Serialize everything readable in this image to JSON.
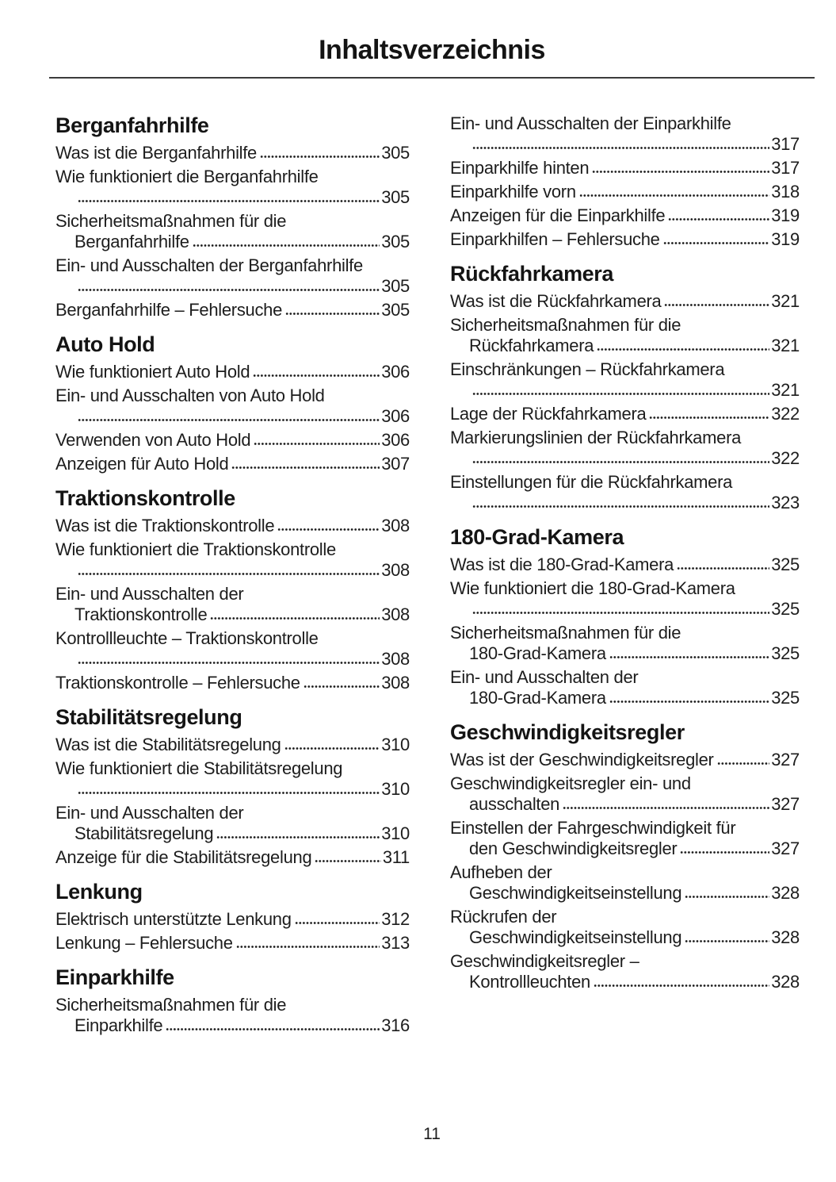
{
  "page": {
    "title": "Inhaltsverzeichnis",
    "number": "11"
  },
  "colors": {
    "ink": "#1d1d1d",
    "background": "#ffffff"
  },
  "columns": [
    {
      "sections": [
        {
          "title": "Berganfahrhilfe",
          "entries": [
            [
              {
                "t": "Was ist die Berganfahrhilfe",
                "p": "305"
              }
            ],
            [
              {
                "t": "Wie funktioniert die Berganfahrhilfe",
                "p": ""
              },
              {
                "t": "",
                "p": "305"
              }
            ],
            [
              {
                "t": "Sicherheitsmaßnahmen für die",
                "p": ""
              },
              {
                "t": "Berganfahrhilfe",
                "p": "305"
              }
            ],
            [
              {
                "t": "Ein- und Ausschalten der Berganfahrhilfe",
                "p": ""
              },
              {
                "t": "",
                "p": "305"
              }
            ],
            [
              {
                "t": "Berganfahrhilfe – Fehlersuche",
                "p": "305"
              }
            ]
          ]
        },
        {
          "title": "Auto Hold",
          "entries": [
            [
              {
                "t": "Wie funktioniert Auto Hold",
                "p": "306"
              }
            ],
            [
              {
                "t": "Ein- und Ausschalten von Auto Hold",
                "p": ""
              },
              {
                "t": "",
                "p": "306"
              }
            ],
            [
              {
                "t": "Verwenden von Auto Hold",
                "p": "306"
              }
            ],
            [
              {
                "t": "Anzeigen für Auto Hold",
                "p": "307"
              }
            ]
          ]
        },
        {
          "title": "Traktionskontrolle",
          "entries": [
            [
              {
                "t": "Was ist die Traktionskontrolle",
                "p": "308"
              }
            ],
            [
              {
                "t": "Wie funktioniert die Traktionskontrolle",
                "p": ""
              },
              {
                "t": "",
                "p": "308"
              }
            ],
            [
              {
                "t": "Ein- und Ausschalten der",
                "p": ""
              },
              {
                "t": "Traktionskontrolle",
                "p": "308"
              }
            ],
            [
              {
                "t": "Kontrollleuchte – Traktionskontrolle",
                "p": ""
              },
              {
                "t": "",
                "p": "308"
              }
            ],
            [
              {
                "t": "Traktionskontrolle – Fehlersuche",
                "p": "308"
              }
            ]
          ]
        },
        {
          "title": "Stabilitätsregelung",
          "entries": [
            [
              {
                "t": "Was ist die Stabilitätsregelung",
                "p": "310"
              }
            ],
            [
              {
                "t": "Wie funktioniert die Stabilitätsregelung",
                "p": ""
              },
              {
                "t": "",
                "p": "310"
              }
            ],
            [
              {
                "t": "Ein- und Ausschalten der",
                "p": ""
              },
              {
                "t": "Stabilitätsregelung",
                "p": "310"
              }
            ],
            [
              {
                "t": "Anzeige für die Stabilitätsregelung",
                "p": "311"
              }
            ]
          ]
        },
        {
          "title": "Lenkung",
          "entries": [
            [
              {
                "t": "Elektrisch unterstützte Lenkung",
                "p": "312"
              }
            ],
            [
              {
                "t": "Lenkung – Fehlersuche",
                "p": "313"
              }
            ]
          ]
        },
        {
          "title": "Einparkhilfe",
          "entries": [
            [
              {
                "t": "Sicherheitsmaßnahmen für die",
                "p": ""
              },
              {
                "t": "Einparkhilfe",
                "p": "316"
              }
            ]
          ]
        }
      ]
    },
    {
      "sections": [
        {
          "title": null,
          "entries": [
            [
              {
                "t": "Ein- und Ausschalten der Einparkhilfe",
                "p": ""
              },
              {
                "t": "",
                "p": "317"
              }
            ],
            [
              {
                "t": "Einparkhilfe hinten",
                "p": "317"
              }
            ],
            [
              {
                "t": "Einparkhilfe vorn",
                "p": "318"
              }
            ],
            [
              {
                "t": "Anzeigen für die Einparkhilfe",
                "p": "319"
              }
            ],
            [
              {
                "t": "Einparkhilfen – Fehlersuche",
                "p": "319"
              }
            ]
          ]
        },
        {
          "title": "Rückfahrkamera",
          "entries": [
            [
              {
                "t": "Was ist die Rückfahrkamera",
                "p": "321"
              }
            ],
            [
              {
                "t": "Sicherheitsmaßnahmen für die",
                "p": ""
              },
              {
                "t": "Rückfahrkamera ",
                "p": "321"
              }
            ],
            [
              {
                "t": "Einschränkungen – Rückfahrkamera",
                "p": ""
              },
              {
                "t": "",
                "p": "321"
              }
            ],
            [
              {
                "t": "Lage der Rückfahrkamera",
                "p": "322"
              }
            ],
            [
              {
                "t": "Markierungslinien der Rückfahrkamera",
                "p": ""
              },
              {
                "t": "",
                "p": "322"
              }
            ],
            [
              {
                "t": "Einstellungen für die Rückfahrkamera",
                "p": ""
              },
              {
                "t": "",
                "p": "323"
              }
            ]
          ]
        },
        {
          "title": "180-Grad-Kamera",
          "entries": [
            [
              {
                "t": "Was ist die 180-Grad-Kamera",
                "p": "325"
              }
            ],
            [
              {
                "t": "Wie funktioniert die 180-Grad-Kamera",
                "p": ""
              },
              {
                "t": "",
                "p": "325"
              }
            ],
            [
              {
                "t": "Sicherheitsmaßnahmen für die",
                "p": ""
              },
              {
                "t": "180-Grad-Kamera",
                "p": "325"
              }
            ],
            [
              {
                "t": "Ein- und Ausschalten der",
                "p": ""
              },
              {
                "t": "180-Grad-Kamera",
                "p": "325"
              }
            ]
          ]
        },
        {
          "title": "Geschwindigkeitsregler",
          "entries": [
            [
              {
                "t": "Was ist der Geschwindigkeitsregler",
                "p": "327"
              }
            ],
            [
              {
                "t": "Geschwindigkeitsregler ein- und",
                "p": ""
              },
              {
                "t": "ausschalten",
                "p": "327"
              }
            ],
            [
              {
                "t": "Einstellen der Fahrgeschwindigkeit für",
                "p": ""
              },
              {
                "t": "den Geschwindigkeitsregler",
                "p": "327"
              }
            ],
            [
              {
                "t": "Aufheben der",
                "p": ""
              },
              {
                "t": "Geschwindigkeitseinstellung",
                "p": "328"
              }
            ],
            [
              {
                "t": "Rückrufen der",
                "p": ""
              },
              {
                "t": "Geschwindigkeitseinstellung",
                "p": "328"
              }
            ],
            [
              {
                "t": "Geschwindigkeitsregler –",
                "p": ""
              },
              {
                "t": "Kontrollleuchten",
                "p": "328"
              }
            ]
          ]
        }
      ]
    }
  ]
}
